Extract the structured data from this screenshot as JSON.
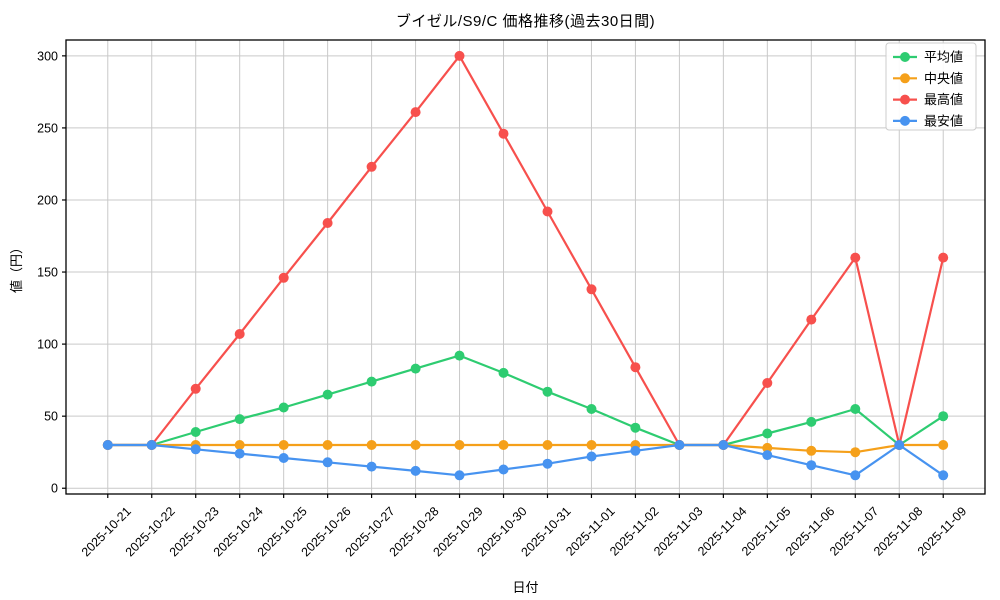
{
  "chart_data": {
    "type": "line",
    "title": "ブイゼル/S9/C 価格推移(過去30日間)",
    "xlabel": "日付",
    "ylabel": "値（円）",
    "x": [
      "2025-10-21",
      "2025-10-22",
      "2025-10-23",
      "2025-10-24",
      "2025-10-25",
      "2025-10-26",
      "2025-10-27",
      "2025-10-28",
      "2025-10-29",
      "2025-10-30",
      "2025-10-31",
      "2025-11-01",
      "2025-11-02",
      "2025-11-03",
      "2025-11-04",
      "2025-11-05",
      "2025-11-06",
      "2025-11-07",
      "2025-11-08",
      "2025-11-09"
    ],
    "series": [
      {
        "name": "平均値",
        "color": "#2ecc71",
        "values": [
          30,
          30,
          39,
          48,
          56,
          65,
          74,
          83,
          92,
          80,
          67,
          55,
          42,
          30,
          30,
          38,
          46,
          55,
          30,
          50
        ]
      },
      {
        "name": "中央値",
        "color": "#f5a01a",
        "values": [
          30,
          30,
          30,
          30,
          30,
          30,
          30,
          30,
          30,
          30,
          30,
          30,
          30,
          30,
          30,
          28,
          26,
          25,
          30,
          30
        ]
      },
      {
        "name": "最高値",
        "color": "#f7504d",
        "values": [
          30,
          30,
          69,
          107,
          146,
          184,
          223,
          261,
          300,
          246,
          192,
          138,
          84,
          30,
          30,
          73,
          117,
          160,
          30,
          160
        ]
      },
      {
        "name": "最安値",
        "color": "#4793f0",
        "values": [
          30,
          30,
          27,
          24,
          21,
          18,
          15,
          12,
          9,
          13,
          17,
          22,
          26,
          30,
          30,
          23,
          16,
          9,
          30,
          9
        ]
      }
    ],
    "yticks": [
      0,
      50,
      100,
      150,
      200,
      250,
      300
    ],
    "ylim": [
      -4,
      311
    ],
    "xlim": [
      -0.95,
      19.95
    ],
    "grid": true,
    "grid_color": "#c9c9c9",
    "axis_color": "#000000",
    "legend_position": "upper right",
    "marker": "circle"
  }
}
